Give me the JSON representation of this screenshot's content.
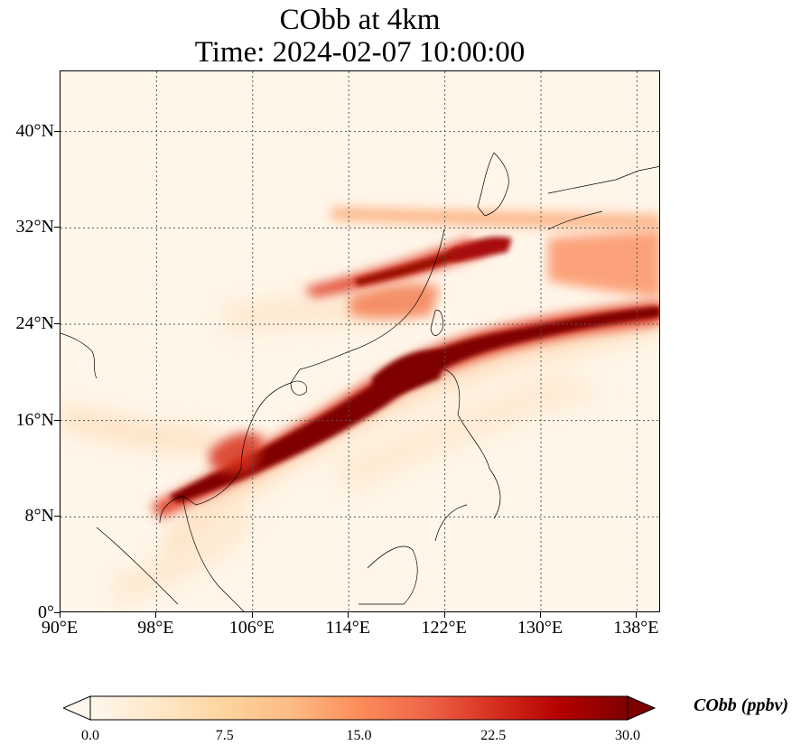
{
  "title": {
    "line1": "CObb at 4km",
    "line2": "Time: 2024-02-07 10:00:00"
  },
  "map": {
    "lon_range": [
      90,
      140
    ],
    "lat_range": [
      0,
      45
    ],
    "lat_ticks": [
      "40°N",
      "32°N",
      "24°N",
      "16°N",
      "8°N",
      "0°"
    ],
    "lat_values": [
      40,
      32,
      24,
      16,
      8,
      0
    ],
    "lon_ticks": [
      "90°E",
      "98°E",
      "106°E",
      "114°E",
      "122°E",
      "130°E",
      "138°E"
    ],
    "lon_values": [
      90,
      98,
      106,
      114,
      122,
      130,
      138
    ],
    "gridlines": true,
    "colormap": "OrRd"
  },
  "colorbar": {
    "label": "CObb (ppbv)",
    "ticks": [
      "0.0",
      "7.5",
      "15.0",
      "22.5",
      "30.0"
    ],
    "tick_values": [
      0,
      7.5,
      15,
      22.5,
      30
    ],
    "range": [
      0,
      30
    ],
    "extend": "both",
    "colors": [
      "#fff7ec",
      "#fee8c8",
      "#fdd49e",
      "#fdbb84",
      "#fc8d59",
      "#ef6548",
      "#d7301f",
      "#b30000",
      "#7f0000"
    ]
  }
}
